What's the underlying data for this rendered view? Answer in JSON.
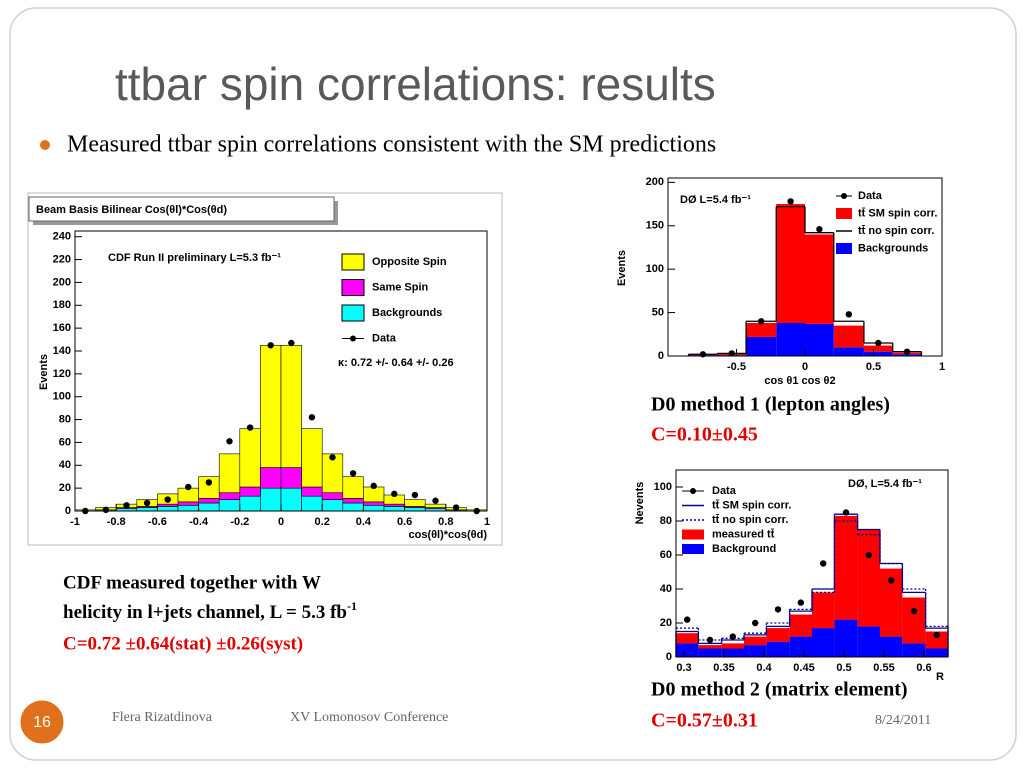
{
  "title": "ttbar spin correlations: results",
  "bullet": "Measured ttbar spin correlations consistent with the SM predictions",
  "cdf_caption": {
    "line1": "CDF measured together with W",
    "line2": "helicity in l+jets channel, L = 5.3 fb",
    "line2_sup": "-1",
    "result": "C=0.72 ±0.64(stat) ±0.26(syst)"
  },
  "d0_method1": {
    "label": "D0 method 1 (lepton angles)",
    "result": "C=0.10±0.45"
  },
  "d0_method2": {
    "label": "D0 method 2 (matrix element)",
    "result": "C=0.57±0.31"
  },
  "footer": {
    "page": "16",
    "author": "Flera Rizatdinova",
    "conference": "XV Lomonosov Conference",
    "date": "8/24/2011"
  },
  "chart_data": [
    {
      "type": "histogram",
      "title": "Beam Basis Bilinear Cos(θl)*Cos(θd)",
      "annotations": [
        "CDF Run II preliminary L=5.3 fb⁻¹",
        "κ: 0.72 +/- 0.64 +/- 0.26"
      ],
      "x_label": "cos(θl)*cos(θd)",
      "y_label": "Events",
      "bins": [
        -1,
        -0.9,
        -0.8,
        -0.7,
        -0.6,
        -0.5,
        -0.4,
        -0.3,
        -0.2,
        -0.1,
        0,
        0.1,
        0.2,
        0.3,
        0.4,
        0.5,
        0.6,
        0.7,
        0.8,
        0.9,
        1
      ],
      "series": [
        {
          "name": "Opposite Spin",
          "style": "bar",
          "color": "#ffff00",
          "values": [
            1,
            2,
            3,
            6,
            9,
            12,
            19,
            34,
            51,
            107,
            107,
            51,
            34,
            19,
            13,
            8,
            6,
            3,
            2,
            1
          ]
        },
        {
          "name": "Same Spin",
          "style": "bar",
          "color": "#ff00ff",
          "values": [
            0,
            0,
            1,
            1,
            2,
            3,
            4,
            6,
            8,
            18,
            18,
            8,
            6,
            4,
            3,
            2,
            1,
            1,
            0,
            0
          ]
        },
        {
          "name": "Backgrounds",
          "style": "bar",
          "color": "#00ffff",
          "values": [
            0,
            1,
            2,
            3,
            4,
            5,
            7,
            10,
            13,
            20,
            20,
            13,
            10,
            7,
            5,
            4,
            3,
            2,
            1,
            0
          ]
        },
        {
          "name": "Data",
          "style": "points",
          "color": "#000000",
          "values": [
            0,
            1,
            5,
            7,
            10,
            21,
            25,
            61,
            73,
            145,
            147,
            82,
            47,
            33,
            22,
            15,
            14,
            9,
            3,
            0
          ]
        }
      ],
      "xlim": [
        -1,
        1
      ],
      "xticks": [
        -1,
        -0.8,
        -0.6,
        -0.4,
        -0.2,
        0,
        0.2,
        0.4,
        0.6,
        0.8,
        1
      ],
      "ylim": [
        0,
        245
      ],
      "yticks": [
        0,
        20,
        40,
        60,
        80,
        100,
        120,
        140,
        160,
        180,
        200,
        220,
        240
      ]
    },
    {
      "type": "histogram",
      "annotations": [
        "DØ L=5.4 fb⁻¹"
      ],
      "x_label": "cos θ1 cos θ2",
      "y_label": "Events",
      "bins": [
        -0.85,
        -0.64,
        -0.43,
        -0.21,
        0,
        0.21,
        0.43,
        0.64,
        0.85
      ],
      "series": [
        {
          "name": "Data",
          "style": "points",
          "color": "#000000",
          "values": [
            2,
            3,
            40,
            178,
            146,
            48,
            15,
            5
          ]
        },
        {
          "name": "tt̄ SM spin corr.",
          "style": "bar",
          "color": "#ff0000",
          "values": [
            1,
            2,
            16,
            137,
            103,
            25,
            7,
            2
          ]
        },
        {
          "name": "tt̄ no spin corr.",
          "style": "step",
          "color": "#000000",
          "values": [
            2,
            3,
            40,
            172,
            142,
            40,
            15,
            5
          ]
        },
        {
          "name": "Backgrounds",
          "style": "bar",
          "color": "#0000ff",
          "values": [
            1,
            1,
            22,
            38,
            37,
            10,
            5,
            2
          ]
        }
      ],
      "xlim": [
        -1,
        1
      ],
      "xticks": [
        -0.5,
        0,
        0.5,
        1
      ],
      "ylim": [
        0,
        205
      ],
      "yticks": [
        0,
        50,
        100,
        150,
        200
      ]
    },
    {
      "type": "histogram",
      "annotations": [
        "DØ, L=5.4 fb⁻¹"
      ],
      "x_label": "R",
      "y_label": "Nevents",
      "bins": [
        0.29,
        0.318,
        0.347,
        0.375,
        0.403,
        0.432,
        0.46,
        0.488,
        0.517,
        0.545,
        0.573,
        0.602,
        0.63
      ],
      "series": [
        {
          "name": "Data",
          "style": "points",
          "color": "#000000",
          "values": [
            22,
            10,
            12,
            20,
            28,
            32,
            55,
            85,
            60,
            45,
            27,
            13
          ]
        },
        {
          "name": "tt̄ SM spin corr.",
          "style": "step",
          "color": "#00008b",
          "values": [
            15,
            8,
            10,
            13,
            18,
            27,
            40,
            84,
            75,
            55,
            38,
            17
          ]
        },
        {
          "name": "tt̄ no spin corr.",
          "style": "step",
          "color": "#00008b",
          "dash": true,
          "values": [
            17,
            10,
            11,
            14,
            20,
            28,
            38,
            80,
            72,
            55,
            40,
            18
          ]
        },
        {
          "name": "measured tt̄",
          "style": "bar",
          "color": "#ff0000",
          "values": [
            6,
            2,
            3,
            5,
            8,
            13,
            21,
            61,
            57,
            40,
            27,
            10
          ]
        },
        {
          "name": "Background",
          "style": "bar",
          "color": "#0000ff",
          "values": [
            8,
            5,
            5,
            7,
            9,
            12,
            17,
            22,
            18,
            12,
            8,
            5
          ]
        }
      ],
      "xlim": [
        0.29,
        0.63
      ],
      "xticks": [
        0.3,
        0.35,
        0.4,
        0.45,
        0.5,
        0.55,
        0.6
      ],
      "ylim": [
        0,
        110
      ],
      "yticks": [
        0,
        20,
        40,
        60,
        80,
        100
      ]
    }
  ]
}
